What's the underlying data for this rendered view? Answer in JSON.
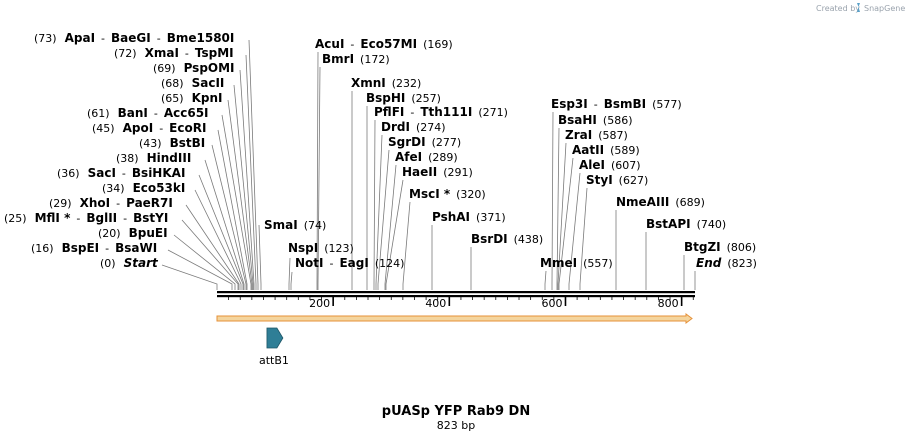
{
  "credit": {
    "text": "Created by",
    "brand": "SnapGene"
  },
  "plasmid": {
    "name": "pUASp YFP Rab9 DN",
    "length": "823 bp",
    "total": 823
  },
  "colors": {
    "backbone": "#000000",
    "arrow_fill": "#f4d59e",
    "arrow_stroke": "#e69138",
    "feature": "#2f7e96"
  },
  "ticks": [
    {
      "value": 200,
      "label": "200"
    },
    {
      "value": 400,
      "label": "400"
    },
    {
      "value": 600,
      "label": "600"
    },
    {
      "value": 800,
      "label": "800"
    }
  ],
  "features": [
    {
      "name": "attB1",
      "start": 86,
      "end": 110,
      "direction": "forward"
    }
  ],
  "sites": [
    {
      "id": "apai",
      "pos": 73,
      "names": [
        "ApaI",
        "BaeGI",
        "Bme1580I"
      ],
      "pos_text": "(73)",
      "pos_first": true
    },
    {
      "id": "xmai",
      "pos": 72,
      "names": [
        "XmaI",
        "TspMI"
      ],
      "pos_text": "(72)",
      "pos_first": true
    },
    {
      "id": "pspomi",
      "pos": 69,
      "names": [
        "PspOMI"
      ],
      "pos_text": "(69)",
      "pos_first": true
    },
    {
      "id": "sacii",
      "pos": 68,
      "names": [
        "SacII"
      ],
      "pos_text": "(68)",
      "pos_first": true
    },
    {
      "id": "kpni",
      "pos": 65,
      "names": [
        "KpnI"
      ],
      "pos_text": "(65)",
      "pos_first": true
    },
    {
      "id": "bani",
      "pos": 61,
      "names": [
        "BanI",
        "Acc65I"
      ],
      "pos_text": "(61)",
      "pos_first": true
    },
    {
      "id": "apoi",
      "pos": 45,
      "names": [
        "ApoI",
        "EcoRI"
      ],
      "pos_text": "(45)",
      "pos_first": true
    },
    {
      "id": "bstbi",
      "pos": 43,
      "names": [
        "BstBI"
      ],
      "pos_text": "(43)",
      "pos_first": true
    },
    {
      "id": "hindiii",
      "pos": 38,
      "names": [
        "HindIII"
      ],
      "pos_text": "(38)",
      "pos_first": true
    },
    {
      "id": "saci",
      "pos": 36,
      "names": [
        "SacI",
        "BsiHKAI"
      ],
      "pos_text": "(36)",
      "pos_first": true
    },
    {
      "id": "eco53ki",
      "pos": 34,
      "names": [
        "Eco53kI"
      ],
      "pos_text": "(34)",
      "pos_first": true
    },
    {
      "id": "xhoi",
      "pos": 29,
      "names": [
        "XhoI",
        "PaeR7I"
      ],
      "pos_text": "(29)",
      "pos_first": true
    },
    {
      "id": "mfli",
      "pos": 25,
      "names": [
        "MflI *",
        "BglII",
        "BstYI"
      ],
      "pos_text": "(25)",
      "pos_first": true
    },
    {
      "id": "bpuei",
      "pos": 20,
      "names": [
        "BpuEI"
      ],
      "pos_text": "(20)",
      "pos_first": true
    },
    {
      "id": "bspei",
      "pos": 16,
      "names": [
        "BspEI",
        "BsaWI"
      ],
      "pos_text": "(16)",
      "pos_first": true
    },
    {
      "id": "start",
      "pos": 0,
      "names": [
        "Start"
      ],
      "pos_text": "(0)",
      "pos_first": true,
      "italic": true
    },
    {
      "id": "smai",
      "pos": 74,
      "names": [
        "SmaI"
      ],
      "pos_text": "(74)"
    },
    {
      "id": "acui",
      "pos": 169,
      "names": [
        "AcuI",
        "Eco57MI"
      ],
      "pos_text": "(169)"
    },
    {
      "id": "bmri",
      "pos": 172,
      "names": [
        "BmrI"
      ],
      "pos_text": "(172)"
    },
    {
      "id": "nspi",
      "pos": 123,
      "names": [
        "NspI"
      ],
      "pos_text": "(123)"
    },
    {
      "id": "noti",
      "pos": 124,
      "names": [
        "NotI",
        "EagI"
      ],
      "pos_text": "(124)"
    },
    {
      "id": "xmni",
      "pos": 232,
      "names": [
        "XmnI"
      ],
      "pos_text": "(232)"
    },
    {
      "id": "bsphi",
      "pos": 257,
      "names": [
        "BspHI"
      ],
      "pos_text": "(257)"
    },
    {
      "id": "pflfi",
      "pos": 271,
      "names": [
        "PflFI",
        "Tth111I"
      ],
      "pos_text": "(271)"
    },
    {
      "id": "drdi",
      "pos": 274,
      "names": [
        "DrdI"
      ],
      "pos_text": "(274)"
    },
    {
      "id": "sgrdi",
      "pos": 277,
      "names": [
        "SgrDI"
      ],
      "pos_text": "(277)"
    },
    {
      "id": "afei",
      "pos": 289,
      "names": [
        "AfeI"
      ],
      "pos_text": "(289)"
    },
    {
      "id": "haeii",
      "pos": 291,
      "names": [
        "HaeII"
      ],
      "pos_text": "(291)"
    },
    {
      "id": "msci",
      "pos": 320,
      "names": [
        "MscI *"
      ],
      "pos_text": "(320)"
    },
    {
      "id": "pshai",
      "pos": 371,
      "names": [
        "PshAI"
      ],
      "pos_text": "(371)"
    },
    {
      "id": "bsrdi",
      "pos": 438,
      "names": [
        "BsrDI"
      ],
      "pos_text": "(438)"
    },
    {
      "id": "esp3i",
      "pos": 577,
      "names": [
        "Esp3I",
        "BsmBI"
      ],
      "pos_text": "(577)"
    },
    {
      "id": "bsahi",
      "pos": 586,
      "names": [
        "BsaHI"
      ],
      "pos_text": "(586)"
    },
    {
      "id": "zrai",
      "pos": 587,
      "names": [
        "ZraI"
      ],
      "pos_text": "(587)"
    },
    {
      "id": "aatii",
      "pos": 589,
      "names": [
        "AatII"
      ],
      "pos_text": "(589)"
    },
    {
      "id": "alei",
      "pos": 607,
      "names": [
        "AleI"
      ],
      "pos_text": "(607)"
    },
    {
      "id": "styi",
      "pos": 627,
      "names": [
        "StyI"
      ],
      "pos_text": "(627)"
    },
    {
      "id": "mmei",
      "pos": 557,
      "names": [
        "MmeI"
      ],
      "pos_text": "(557)"
    },
    {
      "id": "nmeaiii",
      "pos": 689,
      "names": [
        "NmeAIII"
      ],
      "pos_text": "(689)"
    },
    {
      "id": "bstapi",
      "pos": 740,
      "names": [
        "BstAPI"
      ],
      "pos_text": "(740)"
    },
    {
      "id": "btgzi",
      "pos": 806,
      "names": [
        "BtgZI"
      ],
      "pos_text": "(806)"
    },
    {
      "id": "end",
      "pos": 823,
      "names": [
        "End"
      ],
      "pos_text": "(823)",
      "italic": true
    }
  ]
}
